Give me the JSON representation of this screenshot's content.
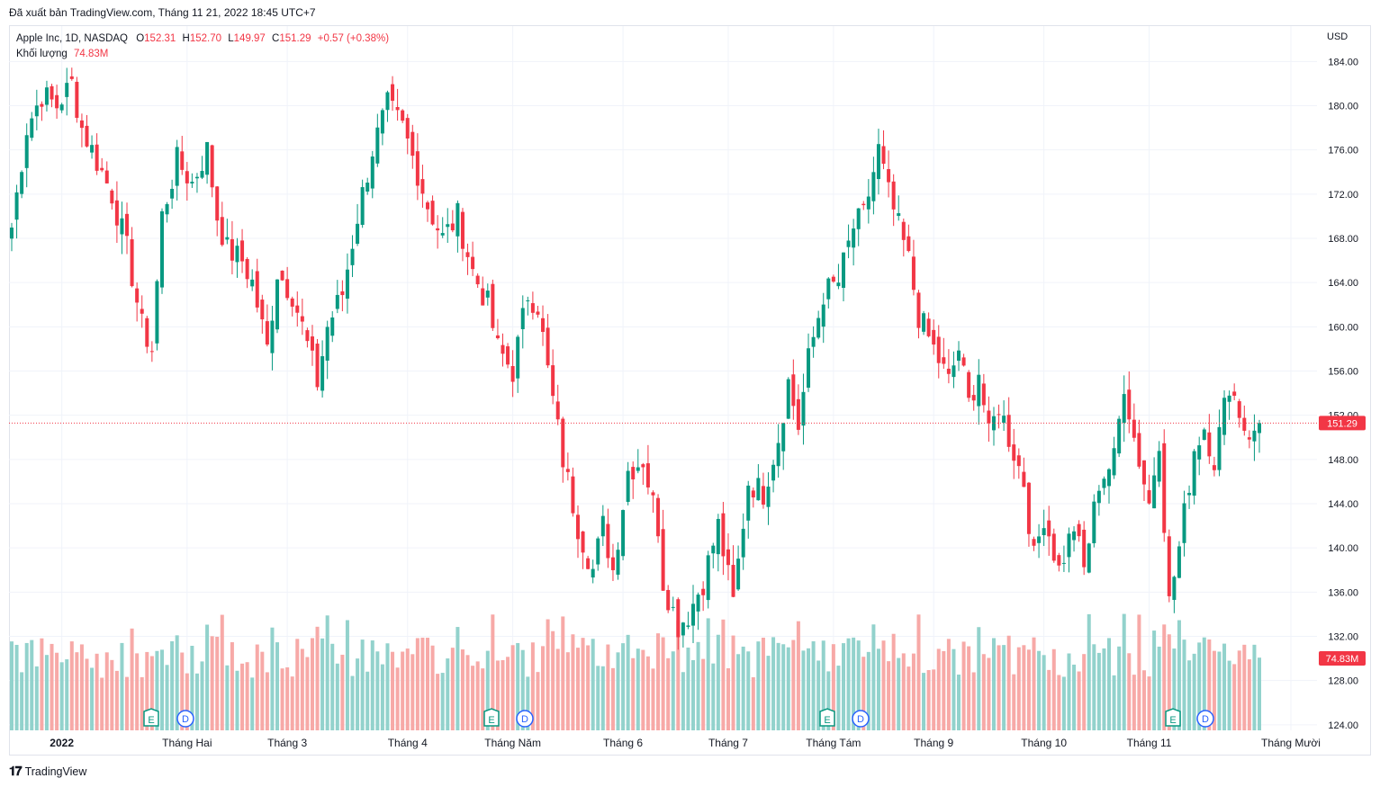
{
  "header": {
    "published": "Đã xuất bản TradingView.com, Tháng 11 21, 2022 18:45 UTC+7"
  },
  "legend": {
    "symbol": "Apple Inc, 1D, NASDAQ",
    "open_label": "O",
    "open": "152.31",
    "high_label": "H",
    "high": "152.70",
    "low_label": "L",
    "low": "149.97",
    "close_label": "C",
    "close": "151.29",
    "change": "+0.57 (+0.38%)",
    "volume_label": "Khối lượng",
    "volume": "74.83M"
  },
  "currency": "USD",
  "footer": {
    "brand": "TradingView",
    "brand_icon": "tradingview-logo-icon"
  },
  "colors": {
    "up": "#089981",
    "down": "#f23645",
    "up_volume": "#92d2cc",
    "down_volume": "#f7a9a7",
    "grid": "#f0f3fa",
    "axis_text": "#131722",
    "last_price_bg": "#f23645"
  },
  "chart_data": {
    "type": "candlestick",
    "symbol": "Apple Inc",
    "timeframe": "1D",
    "exchange": "NASDAQ",
    "ylim": [
      123.5,
      187.2
    ],
    "y_ticks": [
      "124.00",
      "128.00",
      "132.00",
      "136.00",
      "140.00",
      "144.00",
      "148.00",
      "152.00",
      "156.00",
      "160.00",
      "164.00",
      "168.00",
      "172.00",
      "176.00",
      "180.00",
      "184.00"
    ],
    "x_ticks": [
      "2022",
      "Tháng Hai",
      "Tháng 3",
      "Tháng 4",
      "Tháng Năm",
      "Tháng 6",
      "Tháng 7",
      "Tháng Tám",
      "Tháng 9",
      "Tháng 10",
      "Tháng 11",
      "Tháng Mười"
    ],
    "last_price": "151.29",
    "last_volume": "74.83M",
    "grid": true,
    "events": [
      {
        "type": "E",
        "icon": "earnings-icon"
      },
      {
        "type": "D",
        "icon": "dividend-icon"
      },
      {
        "type": "E",
        "icon": "earnings-icon"
      },
      {
        "type": "D",
        "icon": "dividend-icon"
      },
      {
        "type": "E",
        "icon": "earnings-icon"
      },
      {
        "type": "D",
        "icon": "dividend-icon"
      },
      {
        "type": "E",
        "icon": "earnings-icon"
      },
      {
        "type": "D",
        "icon": "dividend-icon"
      }
    ],
    "path": [
      [
        0,
        169
      ],
      [
        3,
        178
      ],
      [
        6,
        181
      ],
      [
        9,
        180
      ],
      [
        12,
        182
      ],
      [
        14,
        178
      ],
      [
        17,
        175
      ],
      [
        20,
        172
      ],
      [
        23,
        167
      ],
      [
        26,
        160
      ],
      [
        28,
        158
      ],
      [
        30,
        170
      ],
      [
        33,
        175
      ],
      [
        36,
        173
      ],
      [
        39,
        176
      ],
      [
        41,
        170
      ],
      [
        43,
        167
      ],
      [
        46,
        166
      ],
      [
        48,
        164
      ],
      [
        51,
        158
      ],
      [
        53,
        165
      ],
      [
        56,
        163
      ],
      [
        58,
        160
      ],
      [
        61,
        155
      ],
      [
        63,
        160
      ],
      [
        66,
        163
      ],
      [
        69,
        170
      ],
      [
        72,
        176
      ],
      [
        75,
        180
      ],
      [
        78,
        178
      ],
      [
        81,
        174
      ],
      [
        83,
        171
      ],
      [
        86,
        168
      ],
      [
        89,
        170
      ],
      [
        92,
        165
      ],
      [
        95,
        162
      ],
      [
        97,
        158
      ],
      [
        100,
        156
      ],
      [
        103,
        163
      ],
      [
        105,
        162
      ],
      [
        107,
        156
      ],
      [
        110,
        148
      ],
      [
        113,
        142
      ],
      [
        116,
        138
      ],
      [
        118,
        142
      ],
      [
        120,
        138
      ],
      [
        123,
        147
      ],
      [
        126,
        148
      ],
      [
        129,
        142
      ],
      [
        130,
        137
      ],
      [
        133,
        133
      ],
      [
        135,
        134
      ],
      [
        138,
        137
      ],
      [
        141,
        142
      ],
      [
        144,
        135
      ],
      [
        147,
        146
      ],
      [
        150,
        145
      ],
      [
        153,
        150
      ],
      [
        155,
        155
      ],
      [
        157,
        151
      ],
      [
        159,
        157
      ],
      [
        162,
        163
      ],
      [
        165,
        164
      ],
      [
        168,
        169
      ],
      [
        170,
        170
      ],
      [
        173,
        176
      ],
      [
        175,
        172
      ],
      [
        177,
        169
      ],
      [
        179,
        166
      ],
      [
        181,
        161
      ],
      [
        184,
        158
      ],
      [
        187,
        155
      ],
      [
        189,
        158
      ],
      [
        191,
        153
      ],
      [
        193,
        156
      ],
      [
        195,
        150
      ],
      [
        197,
        153
      ],
      [
        199,
        150
      ],
      [
        202,
        146
      ],
      [
        204,
        139
      ],
      [
        206,
        143
      ],
      [
        209,
        138
      ],
      [
        212,
        142
      ],
      [
        214,
        138
      ],
      [
        217,
        146
      ],
      [
        220,
        148
      ],
      [
        222,
        155
      ],
      [
        224,
        150
      ],
      [
        227,
        144
      ],
      [
        229,
        150
      ],
      [
        231,
        135
      ],
      [
        233,
        140
      ],
      [
        236,
        149
      ],
      [
        238,
        151
      ],
      [
        240,
        148
      ],
      [
        243,
        155
      ],
      [
        246,
        151
      ],
      [
        248,
        150
      ]
    ],
    "volume_ranges_m": {
      "max": 160,
      "typical": "50-120"
    }
  }
}
